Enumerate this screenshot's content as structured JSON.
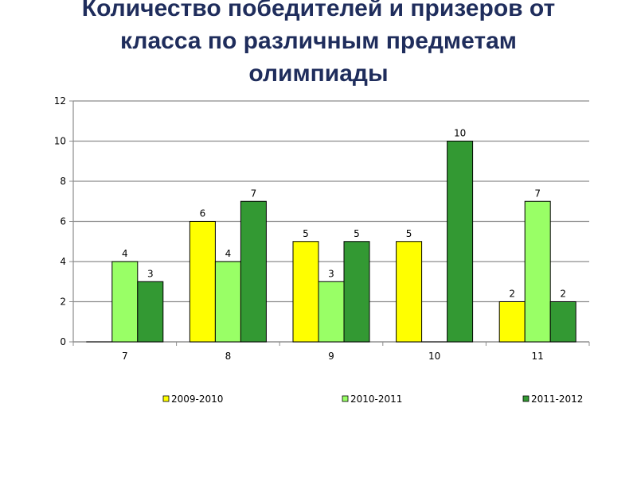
{
  "page": {
    "title_lines": [
      "Количество победителей и призеров от",
      "класса по различным предметам",
      "олимпиады"
    ]
  },
  "chart_data": {
    "type": "bar",
    "title": "Количество победителей и призеров от класса по различным предметам олимпиады",
    "categories": [
      "7",
      "8",
      "9",
      "10",
      "11"
    ],
    "series": [
      {
        "name": "2009-2010",
        "color": "#ffff00",
        "values": [
          0,
          6,
          5,
          5,
          2
        ]
      },
      {
        "name": "2010-2011",
        "color": "#99ff66",
        "values": [
          4,
          4,
          3,
          0,
          7
        ]
      },
      {
        "name": "2011-2012",
        "color": "#339933",
        "values": [
          3,
          7,
          5,
          10,
          2
        ]
      }
    ],
    "data_labels": [
      [
        "",
        "4",
        "3"
      ],
      [
        "6",
        "4",
        "7"
      ],
      [
        "5",
        "3",
        "5"
      ],
      [
        "5",
        "",
        "10"
      ],
      [
        "2",
        "7",
        "2"
      ]
    ],
    "ylim": [
      0,
      12
    ],
    "yticks": [
      "0",
      "2",
      "4",
      "6",
      "8",
      "10",
      "12"
    ],
    "grid": true,
    "legend": "bottom"
  }
}
